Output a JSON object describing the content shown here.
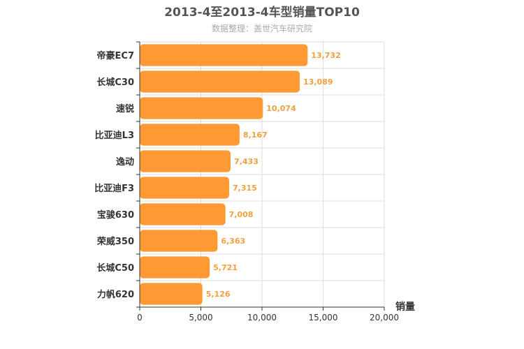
{
  "chart_data": {
    "type": "bar",
    "orientation": "horizontal",
    "title": "2013-4至2013-4车型销量TOP10",
    "subtitle": "数据整理：盖世汽车研究院",
    "categories": [
      "帝豪EC7",
      "长城C30",
      "速锐",
      "比亚迪L3",
      "逸动",
      "比亚迪F3",
      "宝骏630",
      "荣威350",
      "长城C50",
      "力帆620"
    ],
    "values": [
      13732,
      13089,
      10074,
      8167,
      7433,
      7315,
      7008,
      6363,
      5721,
      5126
    ],
    "value_labels": [
      "13,732",
      "13,089",
      "10,074",
      "8,167",
      "7,433",
      "7,315",
      "7,008",
      "6,363",
      "5,721",
      "5,126"
    ],
    "xlabel": "销量",
    "ylabel": "",
    "xlim": [
      0,
      20000
    ],
    "xticks": [
      0,
      5000,
      10000,
      15000,
      20000
    ],
    "xtick_labels": [
      "0",
      "5,000",
      "10,000",
      "15,000",
      "20,000"
    ],
    "grid": true,
    "bar_color": "#ff9933",
    "label_color": "#f0a040"
  }
}
